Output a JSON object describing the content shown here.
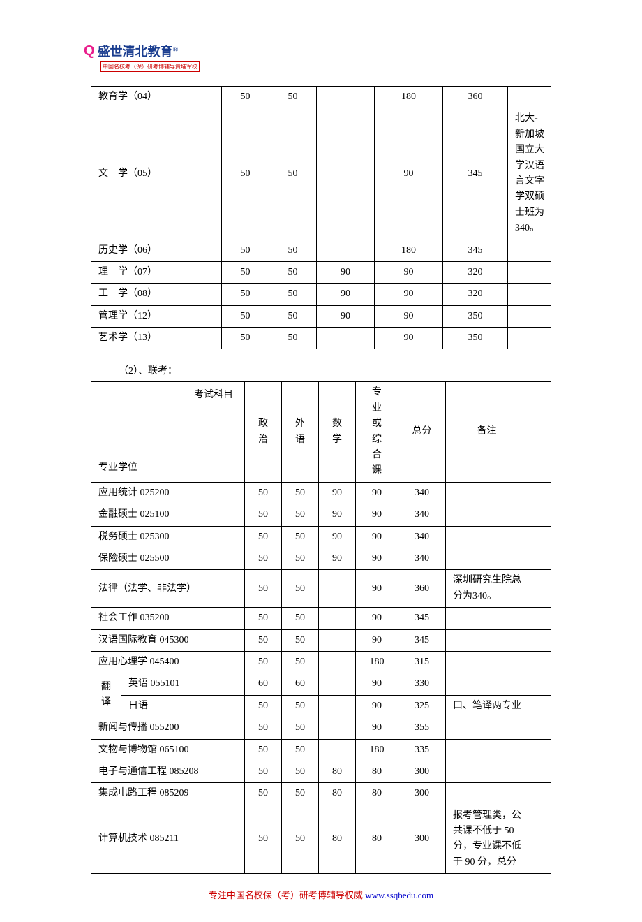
{
  "logo": {
    "q": "Q",
    "main": "盛世清北教育",
    "reg": "®",
    "sub": "中国名校考（保）研考博辅导黄埔军校"
  },
  "table1": {
    "rows": [
      {
        "name": "教育学（04）",
        "pol": "50",
        "fl": "50",
        "math": "",
        "comp": "180",
        "total": "360",
        "note": ""
      },
      {
        "name": "文　学（05）",
        "pol": "50",
        "fl": "50",
        "math": "",
        "comp": "90",
        "total": "345",
        "note": "北大-新加坡国立大学汉语言文字学双硕士班为 340。"
      },
      {
        "name": "历史学（06）",
        "pol": "50",
        "fl": "50",
        "math": "",
        "comp": "180",
        "total": "345",
        "note": ""
      },
      {
        "name": "理　学（07）",
        "pol": "50",
        "fl": "50",
        "math": "90",
        "comp": "90",
        "total": "320",
        "note": ""
      },
      {
        "name": "工　学（08）",
        "pol": "50",
        "fl": "50",
        "math": "90",
        "comp": "90",
        "total": "320",
        "note": ""
      },
      {
        "name": "管理学（12）",
        "pol": "50",
        "fl": "50",
        "math": "90",
        "comp": "90",
        "total": "350",
        "note": ""
      },
      {
        "name": "艺术学（13）",
        "pol": "50",
        "fl": "50",
        "math": "",
        "comp": "90",
        "total": "350",
        "note": ""
      }
    ]
  },
  "section2_label": "（2）、联考：",
  "table2": {
    "header": {
      "diag_top": "考试科目",
      "diag_bot": "专业学位",
      "pol": "政治",
      "fl": "外语",
      "math": "数学",
      "comp": "专业或综合课",
      "total": "总分",
      "note": "备注"
    },
    "rows": [
      {
        "span": false,
        "name": "应用统计 025200",
        "pol": "50",
        "fl": "50",
        "math": "90",
        "comp": "90",
        "total": "340",
        "note": ""
      },
      {
        "span": false,
        "name": "金融硕士 025100",
        "pol": "50",
        "fl": "50",
        "math": "90",
        "comp": "90",
        "total": "340",
        "note": ""
      },
      {
        "span": false,
        "name": "税务硕士 025300",
        "pol": "50",
        "fl": "50",
        "math": "90",
        "comp": "90",
        "total": "340",
        "note": ""
      },
      {
        "span": false,
        "name": "保险硕士 025500",
        "pol": "50",
        "fl": "50",
        "math": "90",
        "comp": "90",
        "total": "340",
        "note": ""
      },
      {
        "span": false,
        "name": "法律（法学、非法学）",
        "pol": "50",
        "fl": "50",
        "math": "",
        "comp": "90",
        "total": "360",
        "note": "深圳研究生院总分为340。"
      },
      {
        "span": false,
        "name": "社会工作 035200",
        "pol": "50",
        "fl": "50",
        "math": "",
        "comp": "90",
        "total": "345",
        "note": ""
      },
      {
        "span": false,
        "name": "汉语国际教育 045300",
        "pol": "50",
        "fl": "50",
        "math": "",
        "comp": "90",
        "total": "345",
        "note": ""
      },
      {
        "span": false,
        "name": "应用心理学 045400",
        "pol": "50",
        "fl": "50",
        "math": "",
        "comp": "180",
        "total": "315",
        "note": ""
      }
    ],
    "spanGroup": {
      "groupLabel": "翻译",
      "sub": [
        {
          "name": "英语 055101",
          "pol": "60",
          "fl": "60",
          "math": "",
          "comp": "90",
          "total": "330",
          "note": ""
        },
        {
          "name": "日语",
          "pol": "50",
          "fl": "50",
          "math": "",
          "comp": "90",
          "total": "325",
          "note": "口、笔译两专业"
        }
      ]
    },
    "rows2": [
      {
        "name": "新闻与传播 055200",
        "pol": "50",
        "fl": "50",
        "math": "",
        "comp": "90",
        "total": "355",
        "note": ""
      },
      {
        "name": "文物与博物馆 065100",
        "pol": "50",
        "fl": "50",
        "math": "",
        "comp": "180",
        "total": "335",
        "note": ""
      },
      {
        "name": "电子与通信工程 085208",
        "pol": "50",
        "fl": "50",
        "math": "80",
        "comp": "80",
        "total": "300",
        "note": ""
      },
      {
        "name": "集成电路工程 085209",
        "pol": "50",
        "fl": "50",
        "math": "80",
        "comp": "80",
        "total": "300",
        "note": ""
      },
      {
        "name": "计算机技术 085211",
        "pol": "50",
        "fl": "50",
        "math": "80",
        "comp": "80",
        "total": "300",
        "note": "报考管理类，公共课不低于 50 分，专业课不低于 90 分，总分"
      }
    ]
  },
  "footer": {
    "red": "专注中国名校保（考）研考博辅导权威 ",
    "blue": "www.ssqbedu.com"
  }
}
